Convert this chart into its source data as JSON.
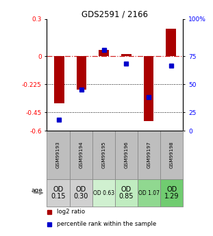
{
  "title": "GDS2591 / 2166",
  "samples": [
    "GSM99193",
    "GSM99194",
    "GSM99195",
    "GSM99196",
    "GSM99197",
    "GSM99198"
  ],
  "log2_ratio": [
    -0.38,
    -0.27,
    0.05,
    0.02,
    -0.52,
    0.22
  ],
  "percentile_rank": [
    10,
    37,
    72,
    60,
    30,
    58
  ],
  "bar_color": "#AA0000",
  "dot_color": "#0000CC",
  "ylim": [
    -0.6,
    0.3
  ],
  "yticks_left_vals": [
    0.3,
    0,
    -0.225,
    -0.45,
    -0.6
  ],
  "yticks_left_labels": [
    "0.3",
    "0",
    "-0.225",
    "-0.45",
    "-0.6"
  ],
  "yticks_right_labels": [
    "100%",
    "75",
    "50",
    "25",
    "0"
  ],
  "row_labels": [
    "OD\n0.15",
    "OD\n0.30",
    "OD 0.63",
    "OD\n0.85",
    "OD 1.07",
    "OD\n1.29"
  ],
  "row_bg_colors": [
    "#d0d0d0",
    "#d0d0d0",
    "#d0f0d0",
    "#c0ecc0",
    "#90d890",
    "#70cc70"
  ],
  "row_fontsize_small": [
    false,
    false,
    true,
    false,
    true,
    false
  ],
  "sample_bg_color": "#bebebe",
  "age_label": "age",
  "legend_red": "log2 ratio",
  "legend_blue": "percentile rank within the sample",
  "bar_width": 0.45
}
